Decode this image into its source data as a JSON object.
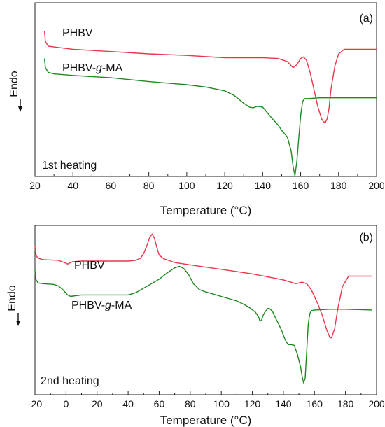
{
  "chart_data": [
    {
      "type": "line",
      "panel_label": "(a)",
      "annotation": "1st heating",
      "xlabel": "Temperature (°C)",
      "ylabel": "Endo",
      "xlim": [
        20,
        200
      ],
      "x_ticks": [
        20,
        40,
        60,
        80,
        100,
        120,
        140,
        160,
        180,
        200
      ],
      "y_ticks_shown": false,
      "ylim": [
        0,
        100
      ],
      "grid": false,
      "legend": "inline labels beside curves",
      "colors": {
        "PHBV": "#e8374a",
        "PHBV-g-MA": "#1c8a1c"
      },
      "series": [
        {
          "name": "PHBV",
          "x": [
            25,
            25.5,
            27,
            30,
            40,
            60,
            80,
            100,
            120,
            130,
            140,
            148,
            153,
            156,
            158,
            160,
            161.5,
            163,
            165,
            167,
            169,
            171,
            172,
            173,
            174,
            175,
            176,
            178,
            180,
            183,
            190,
            200
          ],
          "y": [
            90,
            83,
            80,
            79.5,
            78,
            76.5,
            75,
            74,
            72.5,
            72.5,
            72.5,
            72,
            70,
            66,
            68,
            72,
            73,
            71,
            63,
            52,
            41,
            33,
            31,
            30.5,
            33,
            40,
            52,
            67,
            75,
            78,
            78,
            78
          ]
        },
        {
          "name": "PHBV-g-MA",
          "x": [
            25,
            25.5,
            27,
            30,
            40,
            60,
            80,
            100,
            110,
            120,
            125,
            130,
            133,
            135,
            137,
            140,
            142,
            145,
            148,
            150,
            153,
            155,
            156,
            157,
            158,
            159,
            160,
            161,
            162,
            164,
            170,
            180,
            200
          ],
          "y": [
            72,
            66,
            63,
            62,
            61,
            59.5,
            57,
            55,
            53.5,
            51,
            48,
            43,
            40.5,
            40,
            41,
            40.5,
            37.5,
            33,
            29,
            25.5,
            21,
            12,
            2,
            -4,
            5,
            20,
            35,
            44,
            46,
            46,
            46.5,
            46.5,
            46.5
          ]
        }
      ]
    },
    {
      "type": "line",
      "panel_label": "(b)",
      "annotation": "2nd heating",
      "xlabel": "Temperature (°C)",
      "ylabel": "Endo",
      "xlim": [
        -20,
        200
      ],
      "x_ticks": [
        -20,
        0,
        20,
        40,
        60,
        80,
        100,
        120,
        140,
        160,
        180,
        200
      ],
      "y_ticks_shown": false,
      "ylim": [
        0,
        100
      ],
      "grid": false,
      "legend": "inline labels beside curves",
      "colors": {
        "PHBV": "#e8374a",
        "PHBV-g-MA": "#1c8a1c"
      },
      "series": [
        {
          "name": "PHBV",
          "x": [
            -20,
            -19.5,
            -18,
            -15,
            -5,
            -1,
            1,
            4,
            10,
            20,
            30,
            40,
            45,
            48,
            50,
            52,
            54,
            55.5,
            57,
            58.5,
            60,
            63,
            66,
            70,
            80,
            100,
            120,
            140,
            148,
            152,
            155,
            158,
            162,
            165,
            168,
            170,
            171,
            173,
            175,
            178,
            182,
            190,
            197
          ],
          "y": [
            90,
            84,
            82,
            81,
            80.5,
            79,
            78,
            79.5,
            80,
            80,
            80,
            80,
            80.5,
            82,
            85,
            90,
            96,
            98,
            95,
            89,
            84,
            81.5,
            80.5,
            79,
            77.5,
            74.5,
            71.5,
            67.5,
            65,
            66,
            65,
            61,
            52,
            44,
            34,
            29,
            29,
            35,
            48,
            63,
            70,
            70,
            70
          ]
        },
        {
          "name": "PHBV-g-MA",
          "x": [
            -20,
            -19.5,
            -18,
            -15,
            -8,
            -5,
            -2,
            1,
            3,
            6,
            10,
            20,
            30,
            40,
            45,
            50,
            55,
            60,
            65,
            70,
            73,
            76,
            79,
            82,
            86,
            90,
            100,
            110,
            115,
            119,
            122,
            124,
            125,
            126,
            127,
            128,
            130,
            131,
            133,
            135,
            137,
            139,
            141,
            143,
            145,
            147,
            149,
            151,
            152,
            153,
            154,
            155,
            156,
            157,
            158,
            160,
            170,
            180,
            197
          ],
          "y": [
            74,
            68,
            65.5,
            65,
            64.5,
            63.5,
            61,
            57.5,
            56.5,
            57,
            57.5,
            57.5,
            57.5,
            57.5,
            59,
            62,
            65,
            68,
            72,
            75.5,
            76.5,
            75,
            71,
            65,
            61,
            59.5,
            56.5,
            53.5,
            51,
            48.5,
            46,
            43,
            40,
            41,
            44,
            46,
            48.5,
            48.5,
            46.5,
            42,
            38,
            33.5,
            28,
            24.5,
            24.5,
            24,
            18,
            10,
            4,
            -1,
            2,
            20,
            38,
            45,
            47,
            47.5,
            48,
            48,
            47.5
          ]
        }
      ]
    }
  ]
}
